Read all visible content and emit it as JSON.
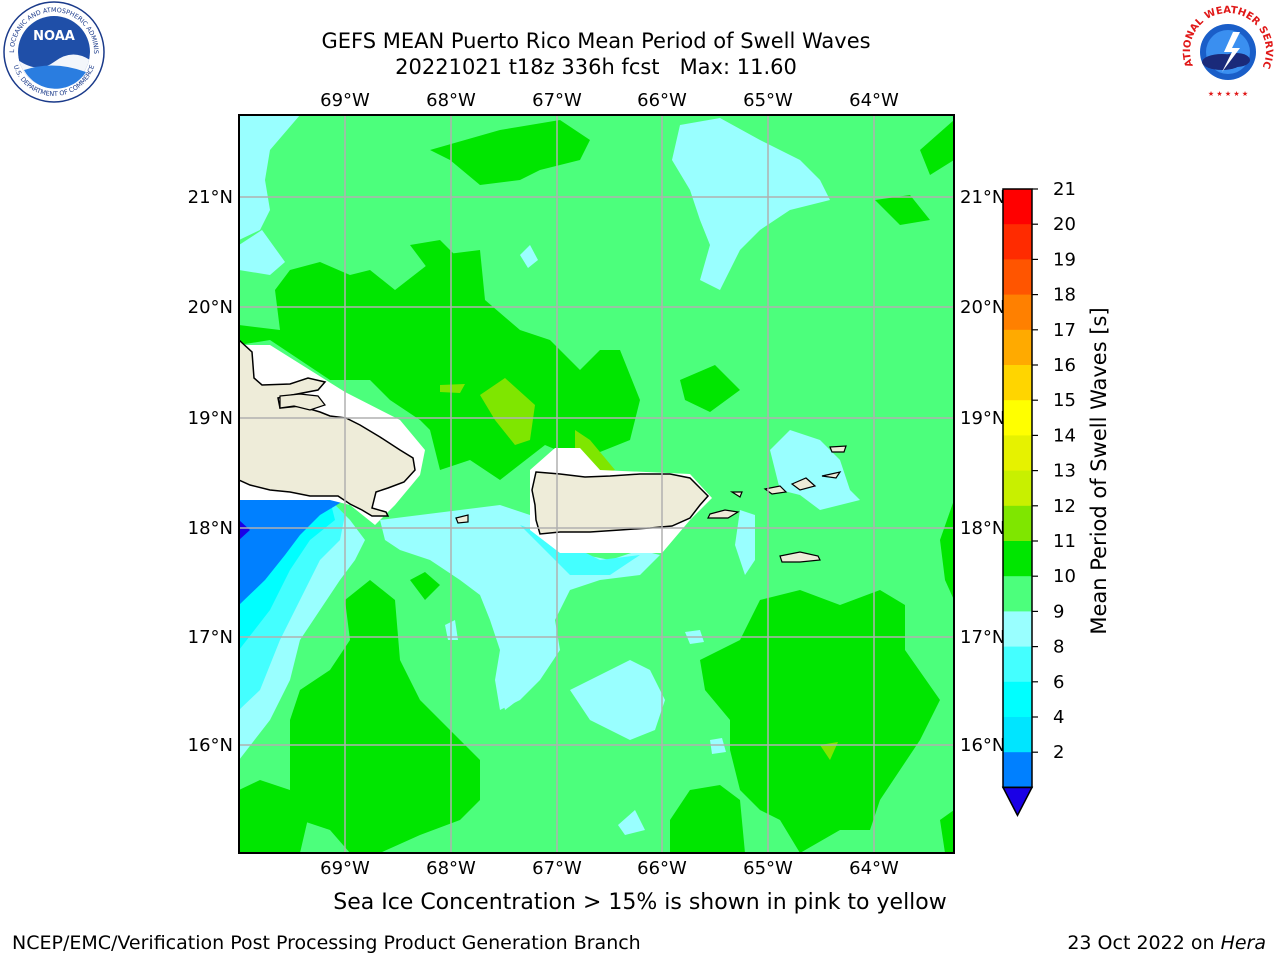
{
  "header": {
    "title_line1": "GEFS MEAN Puerto Rico Mean Period of Swell Waves",
    "title_line2": "20221021 t18z 336h fcst   Max: 11.60"
  },
  "logos": {
    "left": "noaa-logo",
    "right": "nws-logo",
    "noaa_text": "NOAA",
    "noaa_ring_top": "NATIONAL OCEANIC AND ATMOSPHERIC ADMINISTRATION",
    "noaa_ring_bottom": "U.S. DEPARTMENT OF COMMERCE",
    "nws_ring": "NATIONAL WEATHER SERVICE"
  },
  "map": {
    "lon_labels": [
      "69°W",
      "68°W",
      "67°W",
      "66°W",
      "65°W",
      "64°W"
    ],
    "lat_labels": [
      "21°N",
      "20°N",
      "19°N",
      "18°N",
      "17°N",
      "16°N"
    ],
    "colors": {
      "land": "#eeecd9",
      "ocean_dominant": "#4cff7c",
      "ocean_secondary": "#00e600",
      "ocean_light": "#99ffff",
      "grid": "#b0b0b0"
    }
  },
  "colorbar": {
    "label": "Mean Period of Swell Waves [s]",
    "ticks": [
      "21",
      "20",
      "19",
      "18",
      "17",
      "16",
      "15",
      "14",
      "13",
      "12",
      "11",
      "10",
      "9",
      "8",
      "6",
      "4",
      "2"
    ],
    "colors": [
      "#ff0000",
      "#ff2b00",
      "#ff5500",
      "#ff8000",
      "#ffaa00",
      "#ffd500",
      "#ffff00",
      "#e6f200",
      "#c8f000",
      "#7fe600",
      "#00e600",
      "#4cff7c",
      "#99ffff",
      "#44ffff",
      "#00ffff",
      "#00e5ff",
      "#0080ff"
    ],
    "extend_color": "#1a00e6"
  },
  "note": "Sea Ice Concentration > 15% is shown in pink to yellow",
  "footer": {
    "left": "NCEP/EMC/Verification Post Processing Product Generation Branch",
    "date": "23 Oct 2022 on ",
    "host": "Hera"
  }
}
